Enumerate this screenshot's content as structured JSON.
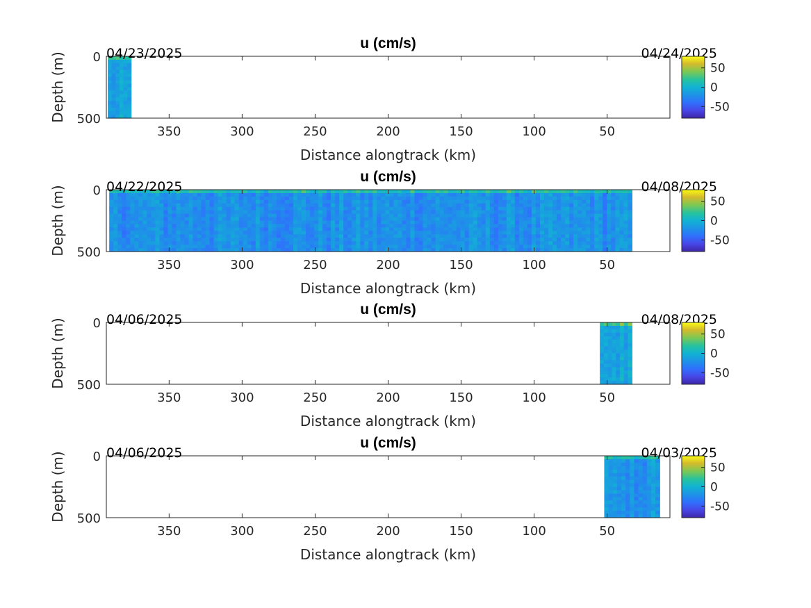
{
  "chart_data": [
    {
      "type": "heatmap",
      "title": "u (cm/s)",
      "xlabel": "Distance alongtrack (km)",
      "ylabel": "Depth (m)",
      "xlim": [
        393,
        7
      ],
      "ylim": [
        0,
        500
      ],
      "xticks": [
        350,
        300,
        250,
        200,
        150,
        100,
        50
      ],
      "yticks": [
        0,
        500
      ],
      "start_date": "04/23/2025",
      "end_date": "04/24/2025",
      "clim": [
        -80,
        80
      ],
      "cticks": [
        50,
        0,
        -50
      ],
      "colormap": "parula",
      "data_extent": [
        {
          "x_start": 392,
          "x_end": 376,
          "depth_max": 500
        }
      ],
      "mean_u": -15
    },
    {
      "type": "heatmap",
      "title": "u (cm/s)",
      "xlabel": "Distance alongtrack (km)",
      "ylabel": "Depth (m)",
      "xlim": [
        393,
        7
      ],
      "ylim": [
        0,
        500
      ],
      "xticks": [
        350,
        300,
        250,
        200,
        150,
        100,
        50
      ],
      "yticks": [
        0,
        500
      ],
      "start_date": "04/22/2025",
      "end_date": "04/08/2025",
      "clim": [
        -80,
        80
      ],
      "cticks": [
        50,
        0,
        -50
      ],
      "colormap": "parula",
      "data_extent": [
        {
          "x_start": 391,
          "x_end": 33,
          "depth_max": 500
        }
      ],
      "mean_u": -22
    },
    {
      "type": "heatmap",
      "title": "u (cm/s)",
      "xlabel": "Distance alongtrack (km)",
      "ylabel": "Depth (m)",
      "xlim": [
        393,
        7
      ],
      "ylim": [
        0,
        500
      ],
      "xticks": [
        350,
        300,
        250,
        200,
        150,
        100,
        50
      ],
      "yticks": [
        0,
        500
      ],
      "start_date": "04/06/2025",
      "end_date": "04/08/2025",
      "clim": [
        -80,
        80
      ],
      "cticks": [
        50,
        0,
        -50
      ],
      "colormap": "parula",
      "data_extent": [
        {
          "x_start": 55,
          "x_end": 33,
          "depth_max": 500
        }
      ],
      "mean_u": -10
    },
    {
      "type": "heatmap",
      "title": "u (cm/s)",
      "xlabel": "Distance alongtrack (km)",
      "ylabel": "Depth (m)",
      "xlim": [
        393,
        7
      ],
      "ylim": [
        0,
        500
      ],
      "xticks": [
        350,
        300,
        250,
        200,
        150,
        100,
        50
      ],
      "yticks": [
        0,
        500
      ],
      "start_date": "04/06/2025",
      "end_date": "04/03/2025",
      "clim": [
        -80,
        80
      ],
      "cticks": [
        50,
        0,
        -50
      ],
      "colormap": "parula",
      "data_extent": [
        {
          "x_start": 52,
          "x_end": 14,
          "depth_max": 500
        }
      ],
      "mean_u": -20
    }
  ]
}
